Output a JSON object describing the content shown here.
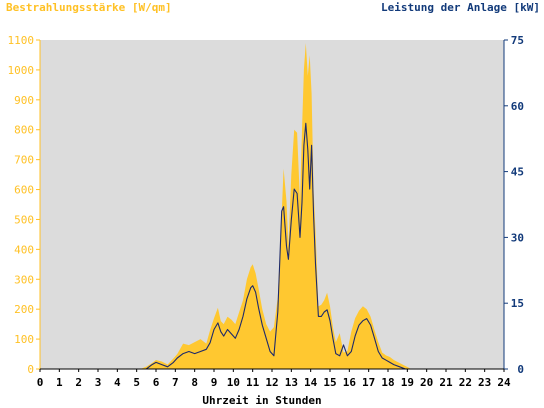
{
  "chart_data": {
    "type": "area",
    "left_axis_title": "Bestrahlungsstärke [W/qm]",
    "right_axis_title": "Leistung der Anlage [kW]",
    "xlabel": "Uhrzeit in Stunden",
    "xlim": [
      0,
      24
    ],
    "ylim_left": [
      0,
      1100
    ],
    "ylim_right": [
      0,
      75
    ],
    "x_ticks": [
      "0",
      "1",
      "2",
      "3",
      "4",
      "5",
      "6",
      "7",
      "8",
      "9",
      "10",
      "11",
      "12",
      "13",
      "14",
      "15",
      "16",
      "17",
      "18",
      "19",
      "20",
      "21",
      "22",
      "23",
      "24"
    ],
    "left_ticks": [
      "0",
      "100",
      "200",
      "300",
      "400",
      "500",
      "600",
      "700",
      "800",
      "900",
      "1000",
      "1100"
    ],
    "right_ticks": [
      "0",
      "15",
      "30",
      "45",
      "60",
      "75"
    ],
    "grid": false,
    "colors": {
      "plot_bg": "#dcdcdc",
      "irradiance": "#ffc830",
      "power": "#1e2a6a",
      "left_axis": "#ffc125",
      "right_axis": "#123a7a"
    },
    "series": [
      {
        "name": "Bestrahlungsstärke [W/qm]",
        "axis": "left",
        "x": [
          0,
          5.2,
          5.5,
          5.8,
          6.0,
          6.3,
          6.6,
          6.9,
          7.1,
          7.4,
          7.7,
          8.0,
          8.3,
          8.6,
          8.8,
          9.0,
          9.2,
          9.35,
          9.5,
          9.7,
          9.9,
          10.1,
          10.3,
          10.5,
          10.7,
          10.9,
          11.0,
          11.15,
          11.3,
          11.5,
          11.7,
          11.9,
          12.1,
          12.3,
          12.5,
          12.6,
          12.75,
          12.85,
          13.0,
          13.15,
          13.3,
          13.45,
          13.55,
          13.65,
          13.75,
          13.85,
          13.95,
          14.05,
          14.15,
          14.25,
          14.4,
          14.55,
          14.7,
          14.85,
          15.0,
          15.15,
          15.3,
          15.5,
          15.7,
          15.9,
          16.1,
          16.3,
          16.5,
          16.7,
          16.9,
          17.1,
          17.3,
          17.5,
          17.7,
          17.9,
          18.1,
          18.3,
          18.6,
          18.9,
          19.2,
          19.5,
          19.8,
          20.0,
          24
        ],
        "y": [
          0,
          0,
          8,
          20,
          30,
          25,
          15,
          35,
          50,
          85,
          80,
          90,
          100,
          85,
          130,
          170,
          205,
          160,
          150,
          175,
          165,
          150,
          190,
          230,
          300,
          340,
          350,
          320,
          270,
          200,
          150,
          125,
          140,
          240,
          520,
          670,
          560,
          410,
          650,
          800,
          790,
          560,
          800,
          1000,
          1090,
          980,
          1050,
          920,
          600,
          460,
          210,
          215,
          230,
          255,
          210,
          140,
          90,
          120,
          55,
          60,
          125,
          170,
          195,
          210,
          200,
          175,
          130,
          90,
          55,
          45,
          40,
          30,
          20,
          10,
          0,
          0,
          0,
          0,
          0
        ]
      },
      {
        "name": "Leistung der Anlage [kW]",
        "axis": "right",
        "x": [
          0,
          5.5,
          5.8,
          6.0,
          6.3,
          6.6,
          6.9,
          7.1,
          7.4,
          7.7,
          8.0,
          8.3,
          8.6,
          8.8,
          9.0,
          9.2,
          9.35,
          9.5,
          9.7,
          9.9,
          10.1,
          10.3,
          10.5,
          10.7,
          10.9,
          11.0,
          11.15,
          11.3,
          11.5,
          11.7,
          11.9,
          12.1,
          12.3,
          12.5,
          12.6,
          12.75,
          12.85,
          13.0,
          13.15,
          13.3,
          13.45,
          13.55,
          13.65,
          13.75,
          13.85,
          13.95,
          14.05,
          14.15,
          14.25,
          14.4,
          14.55,
          14.7,
          14.85,
          15.0,
          15.15,
          15.3,
          15.5,
          15.7,
          15.9,
          16.1,
          16.3,
          16.5,
          16.7,
          16.9,
          17.1,
          17.3,
          17.5,
          17.7,
          17.9,
          18.1,
          18.3,
          18.6,
          18.9,
          19.2,
          19.5,
          19.8,
          24
        ],
        "y": [
          0,
          0,
          1,
          1.5,
          1,
          0.5,
          1.5,
          2.5,
          3.5,
          4,
          3.5,
          4,
          4.5,
          6,
          9,
          10.5,
          8.5,
          7.5,
          9,
          8,
          7,
          9,
          12,
          16,
          18.5,
          19,
          17.5,
          14,
          10,
          7,
          4,
          3,
          13,
          36,
          37,
          28,
          25,
          34,
          41,
          40,
          30,
          38,
          51,
          56,
          50,
          41,
          51,
          35,
          24,
          12,
          12,
          13,
          13.5,
          11,
          7,
          3.5,
          3,
          5.5,
          3,
          4,
          7.5,
          10,
          11,
          11.5,
          10,
          7,
          4,
          2.5,
          2,
          1.5,
          1,
          0.5,
          0,
          0,
          0,
          0,
          0
        ]
      }
    ]
  }
}
